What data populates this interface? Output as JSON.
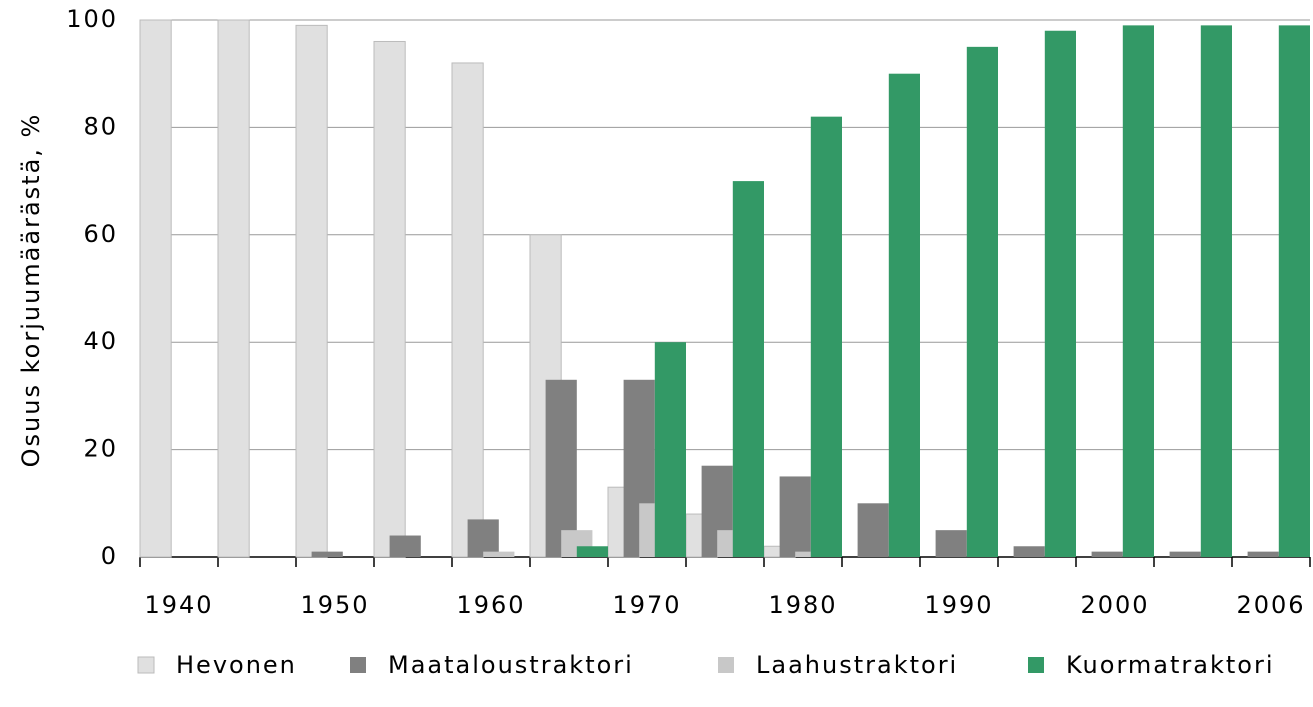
{
  "chart_data": {
    "type": "bar",
    "y_label": "Osuus korjuumäärästä, %",
    "categories": [
      "1940",
      null,
      "1950",
      null,
      "1960",
      null,
      "1970",
      null,
      "1980",
      null,
      "1990",
      null,
      "2000",
      null,
      "2006"
    ],
    "series": [
      {
        "name": "Hevonen",
        "color": "#e0e0e0",
        "values": [
          100,
          100,
          99,
          96,
          92,
          60,
          13,
          8,
          2,
          0,
          0,
          0,
          0,
          0,
          0
        ]
      },
      {
        "name": "Maataloustraktori",
        "color": "#808080",
        "values": [
          0,
          0,
          1,
          4,
          7,
          33,
          33,
          17,
          15,
          10,
          5,
          2,
          1,
          1,
          1
        ]
      },
      {
        "name": "Laahustraktori",
        "color": "#c8c8c8",
        "values": [
          0,
          0,
          0,
          0,
          1,
          5,
          10,
          5,
          1,
          0,
          0,
          0,
          0,
          0,
          0
        ]
      },
      {
        "name": "Kuormatraktori",
        "color": "#339966",
        "values": [
          0,
          0,
          0,
          0,
          0,
          2,
          40,
          70,
          82,
          90,
          95,
          98,
          99,
          99,
          99
        ]
      }
    ],
    "ylim": [
      0,
      100
    ],
    "yticks": [
      0,
      20,
      40,
      60,
      80,
      100
    ],
    "grid": true
  }
}
